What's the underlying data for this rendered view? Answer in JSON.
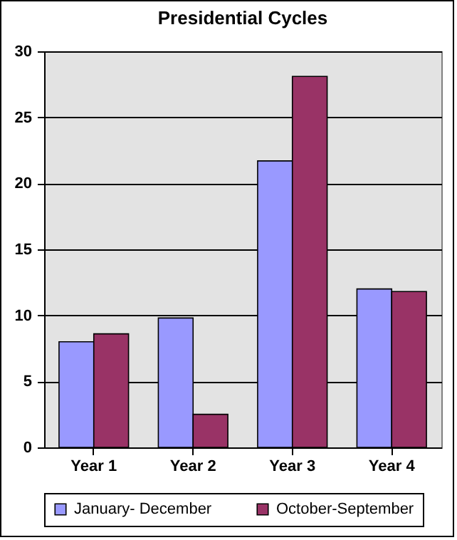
{
  "chart_data": {
    "type": "bar",
    "title": "Presidential Cycles",
    "categories": [
      "Year 1",
      "Year 2",
      "Year 3",
      "Year 4"
    ],
    "series": [
      {
        "name": "January- December",
        "color": "#9999ff",
        "values": [
          8.0,
          9.8,
          21.7,
          12.0
        ]
      },
      {
        "name": "October-September",
        "color": "#993366",
        "values": [
          8.6,
          2.5,
          28.1,
          11.8
        ]
      }
    ],
    "ylim": [
      0,
      30
    ],
    "yticks": [
      0,
      5,
      10,
      15,
      20,
      25,
      30
    ],
    "grid": "y",
    "legend": "bottom"
  }
}
